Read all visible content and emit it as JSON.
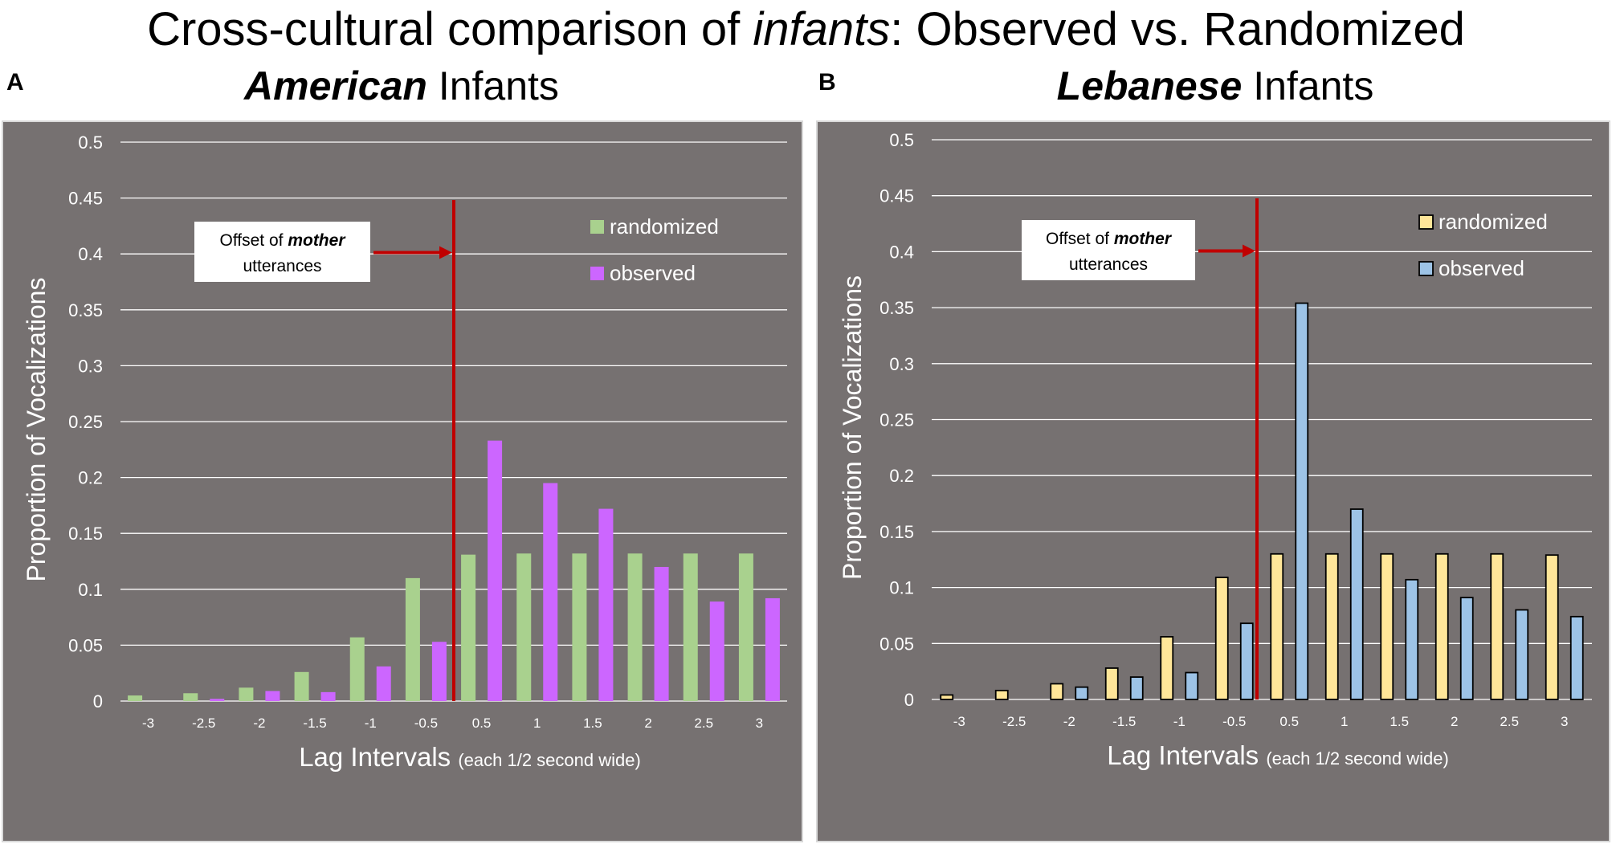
{
  "figure": {
    "title_pre": "Cross-cultural comparison of ",
    "title_em": "infants",
    "title_post": ": Observed vs. Randomized"
  },
  "chart_data": [
    {
      "type": "bar",
      "panel_letter": "A",
      "title_bold": "American",
      "title_rest": " Infants",
      "ylabel": "Proportion of Vocalizations",
      "xlabel_main": "Lag Intervals",
      "xlabel_sub": "(each 1/2 second wide)",
      "ylim": [
        0,
        0.5
      ],
      "yticks": [
        "0",
        "0.05",
        "0.1",
        "0.15",
        "0.2",
        "0.25",
        "0.3",
        "0.35",
        "0.4",
        "0.45",
        "0.5"
      ],
      "categories": [
        "-3",
        "-2.5",
        "-2",
        "-1.5",
        "-1",
        "-0.5",
        "0.5",
        "1",
        "1.5",
        "2",
        "2.5",
        "3"
      ],
      "series": [
        {
          "name": "randomized",
          "color": "#a9d18e",
          "stroke": "none",
          "values": [
            0.005,
            0.007,
            0.012,
            0.026,
            0.057,
            0.11,
            0.131,
            0.132,
            0.132,
            0.132,
            0.132,
            0.132
          ]
        },
        {
          "name": "observed",
          "color": "#cc66ff",
          "stroke": "none",
          "values": [
            0,
            0.002,
            0.009,
            0.008,
            0.031,
            0.053,
            0.233,
            0.195,
            0.172,
            0.12,
            0.089,
            0.092
          ]
        }
      ],
      "annotation": {
        "text_pre": "Offset of ",
        "text_em": "mother",
        "text_line2": "utterances"
      },
      "colors": {
        "background": "#767171",
        "marker_line": "#c00000",
        "grid": "#ffffff",
        "frame": "#d9d9d9"
      }
    },
    {
      "type": "bar",
      "panel_letter": "B",
      "title_bold": "Lebanese",
      "title_rest": " Infants",
      "ylabel": "Proportion of Vocalizations",
      "xlabel_main": "Lag Intervals",
      "xlabel_sub": "(each 1/2 second wide)",
      "ylim": [
        0,
        0.5
      ],
      "yticks": [
        "0",
        "0.05",
        "0.1",
        "0.15",
        "0.2",
        "0.25",
        "0.3",
        "0.35",
        "0.4",
        "0.45",
        "0.5"
      ],
      "categories": [
        "-3",
        "-2.5",
        "-2",
        "-1.5",
        "-1",
        "-0.5",
        "0.5",
        "1",
        "1.5",
        "2",
        "2.5",
        "3"
      ],
      "series": [
        {
          "name": "randomized",
          "color": "#ffe699",
          "stroke": "#000000",
          "values": [
            0.004,
            0.008,
            0.014,
            0.028,
            0.056,
            0.109,
            0.13,
            0.13,
            0.13,
            0.13,
            0.13,
            0.129
          ]
        },
        {
          "name": "observed",
          "color": "#9dc3e6",
          "stroke": "#000000",
          "values": [
            0,
            0,
            0.011,
            0.02,
            0.024,
            0.068,
            0.354,
            0.17,
            0.107,
            0.091,
            0.08,
            0.074
          ]
        }
      ],
      "annotation": {
        "text_pre": "Offset of ",
        "text_em": "mother",
        "text_line2": "utterances"
      },
      "colors": {
        "background": "#767171",
        "marker_line": "#c00000",
        "grid": "#ffffff",
        "frame": "#d9d9d9"
      }
    }
  ]
}
